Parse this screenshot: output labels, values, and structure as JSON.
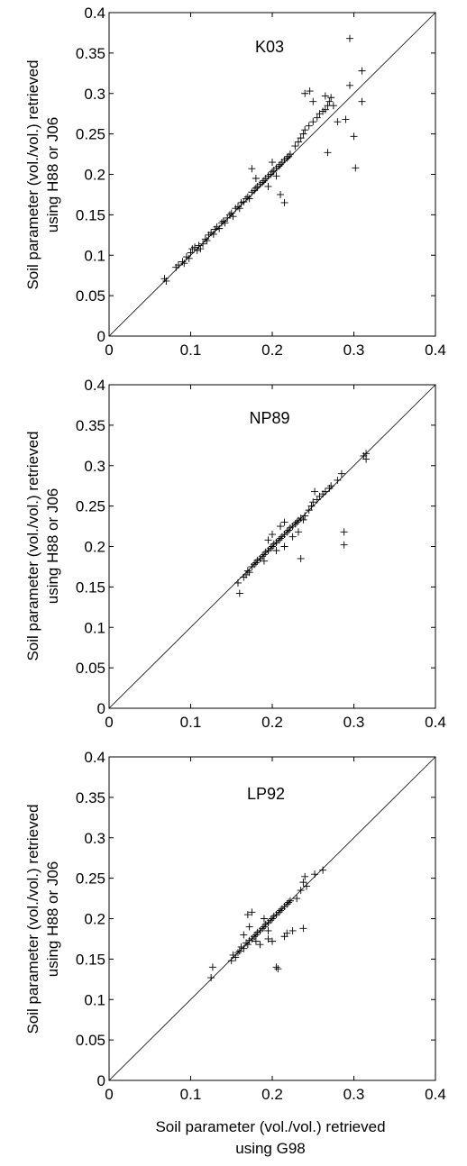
{
  "chart_data": [
    {
      "type": "scatter",
      "title": "K03",
      "xlim": [
        0,
        0.4
      ],
      "ylim": [
        0,
        0.4
      ],
      "xticks": [
        "0",
        "0.1",
        "0.2",
        "0.3",
        "0.4"
      ],
      "yticks": [
        "0",
        "0.05",
        "0.1",
        "0.15",
        "0.2",
        "0.25",
        "0.3",
        "0.35",
        "0.4"
      ],
      "ylabel_line1": "Soil parameter (vol./vol.) retrieved",
      "ylabel_line2": "using H88 or J06",
      "marker": "+",
      "identity_line": true,
      "points": [
        [
          0.068,
          0.071
        ],
        [
          0.07,
          0.068
        ],
        [
          0.082,
          0.085
        ],
        [
          0.085,
          0.088
        ],
        [
          0.09,
          0.092
        ],
        [
          0.092,
          0.09
        ],
        [
          0.095,
          0.098
        ],
        [
          0.098,
          0.096
        ],
        [
          0.1,
          0.103
        ],
        [
          0.102,
          0.108
        ],
        [
          0.105,
          0.11
        ],
        [
          0.108,
          0.106
        ],
        [
          0.11,
          0.112
        ],
        [
          0.112,
          0.108
        ],
        [
          0.115,
          0.114
        ],
        [
          0.118,
          0.12
        ],
        [
          0.12,
          0.118
        ],
        [
          0.122,
          0.125
        ],
        [
          0.125,
          0.128
        ],
        [
          0.128,
          0.126
        ],
        [
          0.13,
          0.132
        ],
        [
          0.132,
          0.135
        ],
        [
          0.135,
          0.133
        ],
        [
          0.138,
          0.14
        ],
        [
          0.14,
          0.142
        ],
        [
          0.142,
          0.14
        ],
        [
          0.145,
          0.146
        ],
        [
          0.148,
          0.15
        ],
        [
          0.15,
          0.152
        ],
        [
          0.152,
          0.148
        ],
        [
          0.155,
          0.158
        ],
        [
          0.158,
          0.16
        ],
        [
          0.16,
          0.158
        ],
        [
          0.162,
          0.165
        ],
        [
          0.165,
          0.166
        ],
        [
          0.168,
          0.17
        ],
        [
          0.17,
          0.172
        ],
        [
          0.172,
          0.17
        ],
        [
          0.175,
          0.178
        ],
        [
          0.178,
          0.18
        ],
        [
          0.18,
          0.183
        ],
        [
          0.182,
          0.185
        ],
        [
          0.185,
          0.188
        ],
        [
          0.188,
          0.19
        ],
        [
          0.19,
          0.192
        ],
        [
          0.192,
          0.195
        ],
        [
          0.195,
          0.198
        ],
        [
          0.198,
          0.2
        ],
        [
          0.2,
          0.203
        ],
        [
          0.202,
          0.205
        ],
        [
          0.205,
          0.208
        ],
        [
          0.208,
          0.21
        ],
        [
          0.21,
          0.212
        ],
        [
          0.212,
          0.215
        ],
        [
          0.215,
          0.218
        ],
        [
          0.218,
          0.22
        ],
        [
          0.22,
          0.222
        ],
        [
          0.222,
          0.225
        ],
        [
          0.175,
          0.207
        ],
        [
          0.18,
          0.195
        ],
        [
          0.195,
          0.185
        ],
        [
          0.21,
          0.175
        ],
        [
          0.215,
          0.165
        ],
        [
          0.2,
          0.215
        ],
        [
          0.205,
          0.198
        ],
        [
          0.228,
          0.235
        ],
        [
          0.232,
          0.24
        ],
        [
          0.235,
          0.245
        ],
        [
          0.238,
          0.25
        ],
        [
          0.24,
          0.255
        ],
        [
          0.245,
          0.26
        ],
        [
          0.25,
          0.265
        ],
        [
          0.255,
          0.27
        ],
        [
          0.258,
          0.275
        ],
        [
          0.262,
          0.278
        ],
        [
          0.265,
          0.28
        ],
        [
          0.268,
          0.285
        ],
        [
          0.27,
          0.29
        ],
        [
          0.272,
          0.295
        ],
        [
          0.275,
          0.285
        ],
        [
          0.24,
          0.3
        ],
        [
          0.246,
          0.303
        ],
        [
          0.25,
          0.29
        ],
        [
          0.268,
          0.227
        ],
        [
          0.28,
          0.265
        ],
        [
          0.29,
          0.268
        ],
        [
          0.295,
          0.31
        ],
        [
          0.295,
          0.368
        ],
        [
          0.3,
          0.247
        ],
        [
          0.302,
          0.208
        ],
        [
          0.31,
          0.29
        ],
        [
          0.31,
          0.328
        ],
        [
          0.265,
          0.297
        ]
      ]
    },
    {
      "type": "scatter",
      "title": "NP89",
      "xlim": [
        0,
        0.4
      ],
      "ylim": [
        0,
        0.4
      ],
      "xticks": [
        "0",
        "0.1",
        "0.2",
        "0.3",
        "0.4"
      ],
      "yticks": [
        "0",
        "0.05",
        "0.1",
        "0.15",
        "0.2",
        "0.25",
        "0.3",
        "0.35",
        "0.4"
      ],
      "ylabel_line1": "Soil parameter (vol./vol.) retrieved",
      "ylabel_line2": "using H88 or J06",
      "marker": "+",
      "identity_line": true,
      "points": [
        [
          0.158,
          0.155
        ],
        [
          0.16,
          0.142
        ],
        [
          0.165,
          0.162
        ],
        [
          0.168,
          0.165
        ],
        [
          0.17,
          0.17
        ],
        [
          0.172,
          0.168
        ],
        [
          0.175,
          0.175
        ],
        [
          0.178,
          0.178
        ],
        [
          0.18,
          0.18
        ],
        [
          0.182,
          0.183
        ],
        [
          0.185,
          0.185
        ],
        [
          0.188,
          0.188
        ],
        [
          0.19,
          0.19
        ],
        [
          0.192,
          0.193
        ],
        [
          0.195,
          0.195
        ],
        [
          0.198,
          0.198
        ],
        [
          0.2,
          0.2
        ],
        [
          0.202,
          0.203
        ],
        [
          0.205,
          0.205
        ],
        [
          0.208,
          0.208
        ],
        [
          0.21,
          0.21
        ],
        [
          0.212,
          0.212
        ],
        [
          0.215,
          0.215
        ],
        [
          0.218,
          0.218
        ],
        [
          0.22,
          0.22
        ],
        [
          0.222,
          0.223
        ],
        [
          0.225,
          0.225
        ],
        [
          0.228,
          0.228
        ],
        [
          0.23,
          0.23
        ],
        [
          0.232,
          0.232
        ],
        [
          0.235,
          0.235
        ],
        [
          0.238,
          0.233
        ],
        [
          0.21,
          0.225
        ],
        [
          0.215,
          0.23
        ],
        [
          0.2,
          0.215
        ],
        [
          0.195,
          0.208
        ],
        [
          0.205,
          0.195
        ],
        [
          0.215,
          0.2
        ],
        [
          0.225,
          0.212
        ],
        [
          0.232,
          0.218
        ],
        [
          0.19,
          0.182
        ],
        [
          0.235,
          0.185
        ],
        [
          0.24,
          0.238
        ],
        [
          0.245,
          0.245
        ],
        [
          0.248,
          0.25
        ],
        [
          0.25,
          0.255
        ],
        [
          0.252,
          0.268
        ],
        [
          0.255,
          0.258
        ],
        [
          0.258,
          0.262
        ],
        [
          0.262,
          0.265
        ],
        [
          0.265,
          0.268
        ],
        [
          0.27,
          0.272
        ],
        [
          0.272,
          0.275
        ],
        [
          0.28,
          0.282
        ],
        [
          0.285,
          0.29
        ],
        [
          0.288,
          0.218
        ],
        [
          0.288,
          0.202
        ],
        [
          0.312,
          0.312
        ],
        [
          0.315,
          0.308
        ],
        [
          0.315,
          0.315
        ]
      ]
    },
    {
      "type": "scatter",
      "title": "LP92",
      "xlim": [
        0,
        0.4
      ],
      "ylim": [
        0,
        0.4
      ],
      "xticks": [
        "0",
        "0.1",
        "0.2",
        "0.3",
        "0.4"
      ],
      "yticks": [
        "0",
        "0.05",
        "0.1",
        "0.15",
        "0.2",
        "0.25",
        "0.3",
        "0.35",
        "0.4"
      ],
      "ylabel_line1": "Soil parameter (vol./vol.) retrieved",
      "ylabel_line2": "using H88 or J06",
      "xlabel_line1": "Soil parameter  (vol./vol.) retrieved",
      "xlabel_line2": "using G98",
      "marker": "+",
      "identity_line": true,
      "points": [
        [
          0.125,
          0.127
        ],
        [
          0.127,
          0.14
        ],
        [
          0.15,
          0.148
        ],
        [
          0.152,
          0.155
        ],
        [
          0.155,
          0.152
        ],
        [
          0.158,
          0.158
        ],
        [
          0.16,
          0.16
        ],
        [
          0.162,
          0.165
        ],
        [
          0.165,
          0.163
        ],
        [
          0.168,
          0.17
        ],
        [
          0.17,
          0.168
        ],
        [
          0.172,
          0.173
        ],
        [
          0.175,
          0.175
        ],
        [
          0.178,
          0.178
        ],
        [
          0.18,
          0.18
        ],
        [
          0.182,
          0.183
        ],
        [
          0.185,
          0.185
        ],
        [
          0.188,
          0.188
        ],
        [
          0.19,
          0.19
        ],
        [
          0.192,
          0.193
        ],
        [
          0.195,
          0.195
        ],
        [
          0.198,
          0.198
        ],
        [
          0.2,
          0.2
        ],
        [
          0.202,
          0.203
        ],
        [
          0.205,
          0.205
        ],
        [
          0.208,
          0.208
        ],
        [
          0.21,
          0.21
        ],
        [
          0.212,
          0.212
        ],
        [
          0.215,
          0.215
        ],
        [
          0.218,
          0.218
        ],
        [
          0.22,
          0.22
        ],
        [
          0.222,
          0.222
        ],
        [
          0.17,
          0.205
        ],
        [
          0.175,
          0.208
        ],
        [
          0.172,
          0.19
        ],
        [
          0.18,
          0.172
        ],
        [
          0.185,
          0.168
        ],
        [
          0.195,
          0.175
        ],
        [
          0.2,
          0.172
        ],
        [
          0.205,
          0.14
        ],
        [
          0.207,
          0.138
        ],
        [
          0.215,
          0.178
        ],
        [
          0.218,
          0.182
        ],
        [
          0.225,
          0.185
        ],
        [
          0.23,
          0.225
        ],
        [
          0.235,
          0.235
        ],
        [
          0.238,
          0.245
        ],
        [
          0.24,
          0.252
        ],
        [
          0.242,
          0.24
        ],
        [
          0.238,
          0.188
        ],
        [
          0.252,
          0.255
        ],
        [
          0.262,
          0.26
        ],
        [
          0.165,
          0.18
        ],
        [
          0.195,
          0.185
        ],
        [
          0.19,
          0.2
        ]
      ]
    }
  ]
}
